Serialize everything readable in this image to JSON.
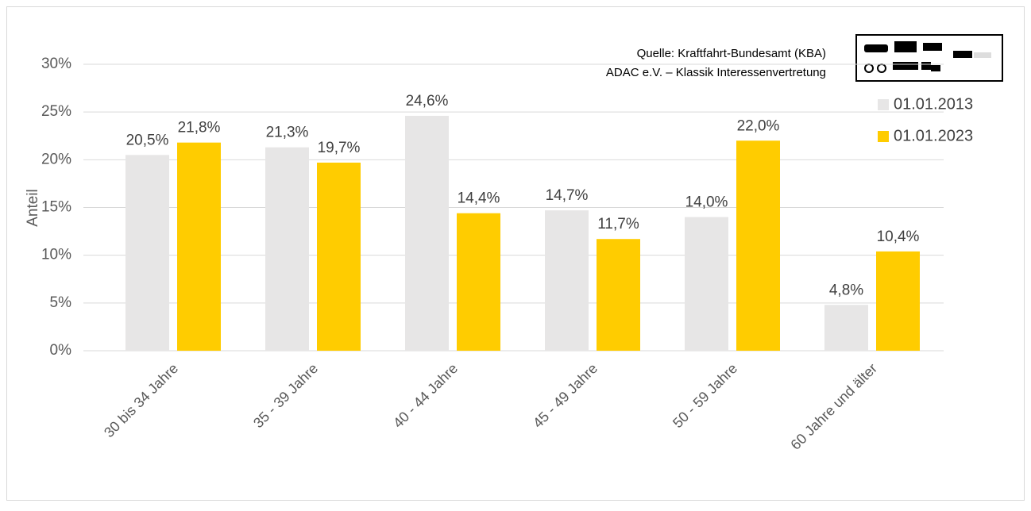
{
  "chart_data": {
    "type": "bar",
    "y_label": "Anteil",
    "annotations": [
      "Quelle: Kraftfahrt-Bundesamt (KBA)",
      "ADAC e.V. – Klassik Interessenvertretung"
    ],
    "categories": [
      "30 bis 34 Jahre",
      "35 - 39 Jahre",
      "40 - 44 Jahre",
      "45 - 49 Jahre",
      "50 - 59 Jahre",
      "60 Jahre und älter"
    ],
    "series": [
      {
        "name": "01.01.2013",
        "color": "#e7e6e6",
        "values": [
          20.5,
          21.3,
          24.6,
          14.7,
          14.0,
          4.8
        ],
        "value_labels": [
          "20,5%",
          "21,3%",
          "24,6%",
          "14,7%",
          "14,0%",
          "4,8%"
        ]
      },
      {
        "name": "01.01.2023",
        "color": "#ffcc00",
        "values": [
          21.8,
          19.7,
          14.4,
          11.7,
          22.0,
          10.4
        ],
        "value_labels": [
          "21,8%",
          "19,7%",
          "14,4%",
          "11,7%",
          "22,0%",
          "10,4%"
        ]
      }
    ],
    "ylim": [
      0,
      30
    ],
    "yticks": [
      {
        "value": 0,
        "label": "0%"
      },
      {
        "value": 5,
        "label": "5%"
      },
      {
        "value": 10,
        "label": "10%"
      },
      {
        "value": 15,
        "label": "15%"
      },
      {
        "value": 20,
        "label": "20%"
      },
      {
        "value": 25,
        "label": "25%"
      },
      {
        "value": 30,
        "label": "30%"
      }
    ],
    "grid": true,
    "legend": "top-right"
  }
}
